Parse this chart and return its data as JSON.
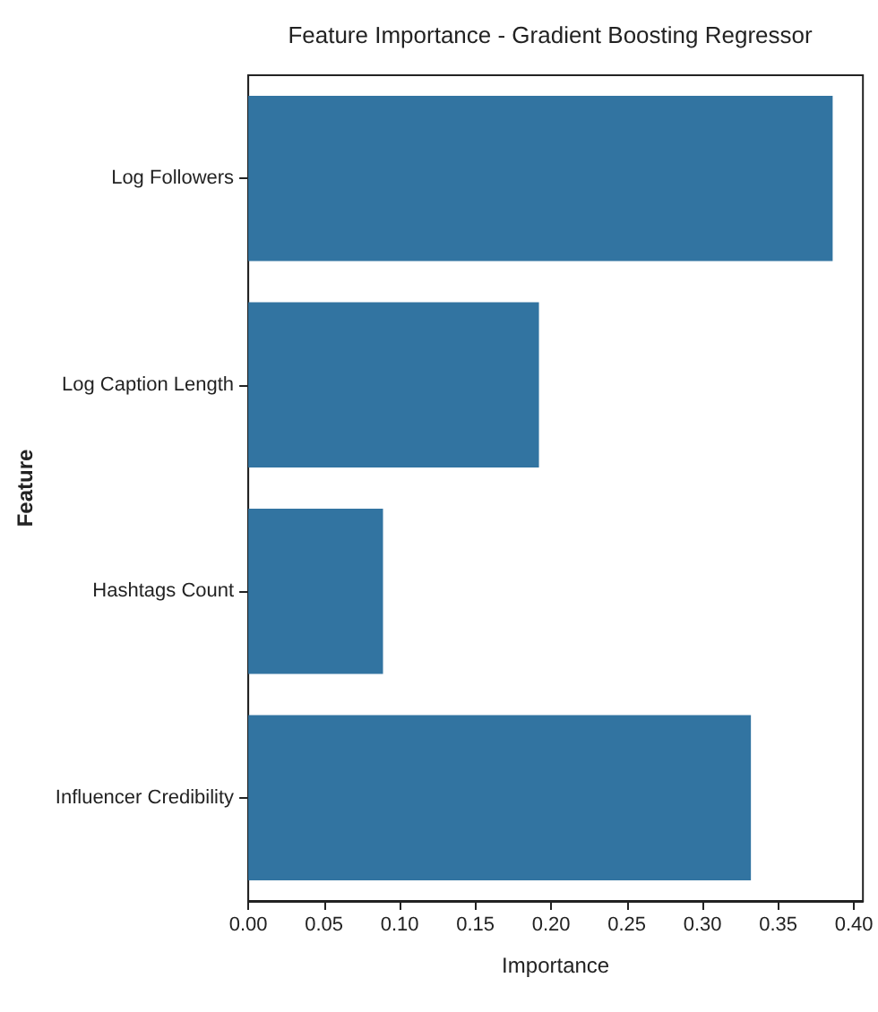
{
  "chart_data": {
    "type": "bar",
    "orientation": "horizontal",
    "title": "Feature Importance - Gradient Boosting Regressor",
    "xlabel": "Importance",
    "ylabel": "Feature",
    "categories": [
      "Log Followers",
      "Log Caption Length",
      "Hashtags Count",
      "Influencer Credibility"
    ],
    "values": [
      0.386,
      0.192,
      0.089,
      0.332
    ],
    "color": "#3274a1",
    "xlim": [
      0,
      0.406
    ],
    "xticks": [
      {
        "value": 0,
        "label": "0.00"
      },
      {
        "value": 0.05,
        "label": "0.05"
      },
      {
        "value": 0.1,
        "label": "0.10"
      },
      {
        "value": 0.15,
        "label": "0.15"
      },
      {
        "value": 0.2,
        "label": "0.20"
      },
      {
        "value": 0.25,
        "label": "0.25"
      },
      {
        "value": 0.3,
        "label": "0.30"
      },
      {
        "value": 0.35,
        "label": "0.35"
      },
      {
        "value": 0.4,
        "label": "0.40"
      }
    ],
    "grid": false
  }
}
